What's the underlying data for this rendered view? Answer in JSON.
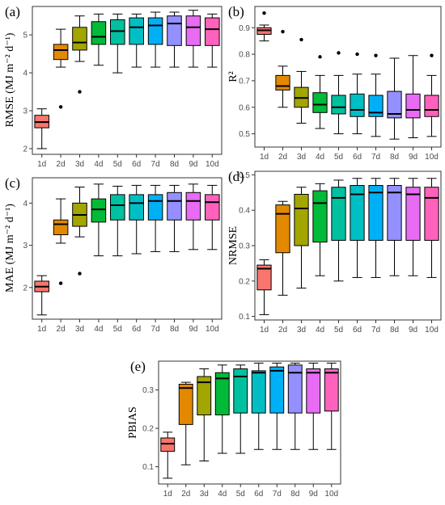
{
  "figure": {
    "categories": [
      "1d",
      "2d",
      "3d",
      "4d",
      "5d",
      "6d",
      "7d",
      "8d",
      "9d",
      "10d"
    ],
    "colors": [
      "#F8766D",
      "#E38900",
      "#A3A500",
      "#00BA38",
      "#00C19F",
      "#00BFC4",
      "#00B0F6",
      "#9590FF",
      "#E76BF3",
      "#FF62BC"
    ]
  },
  "chart_data": [
    {
      "panel": "(a)",
      "type": "box",
      "ylabel": "RMSE (MJ m⁻² d⁻¹)",
      "ylim": [
        1.85,
        5.75
      ],
      "yticks": [
        2,
        3,
        4,
        5
      ],
      "boxes": [
        {
          "cat": "1d",
          "whisker_low": 2.0,
          "q1": 2.55,
          "median": 2.7,
          "q3": 2.88,
          "whisker_high": 3.05,
          "outliers": []
        },
        {
          "cat": "2d",
          "whisker_low": 4.15,
          "q1": 4.35,
          "median": 4.6,
          "q3": 4.75,
          "whisker_high": 5.15,
          "outliers": [
            3.1
          ]
        },
        {
          "cat": "3d",
          "whisker_low": 4.3,
          "q1": 4.6,
          "median": 4.8,
          "q3": 5.2,
          "whisker_high": 5.5,
          "outliers": [
            3.5
          ]
        },
        {
          "cat": "4d",
          "whisker_low": 4.2,
          "q1": 4.75,
          "median": 4.95,
          "q3": 5.35,
          "whisker_high": 5.55,
          "outliers": []
        },
        {
          "cat": "5d",
          "whisker_low": 4.0,
          "q1": 4.75,
          "median": 5.1,
          "q3": 5.4,
          "whisker_high": 5.55,
          "outliers": []
        },
        {
          "cat": "6d",
          "whisker_low": 4.15,
          "q1": 4.75,
          "median": 5.2,
          "q3": 5.45,
          "whisker_high": 5.55,
          "outliers": []
        },
        {
          "cat": "7d",
          "whisker_low": 4.15,
          "q1": 4.75,
          "median": 5.25,
          "q3": 5.45,
          "whisker_high": 5.6,
          "outliers": []
        },
        {
          "cat": "8d",
          "whisker_low": 4.15,
          "q1": 4.72,
          "median": 5.3,
          "q3": 5.5,
          "whisker_high": 5.6,
          "outliers": []
        },
        {
          "cat": "9d",
          "whisker_low": 4.15,
          "q1": 4.72,
          "median": 5.2,
          "q3": 5.5,
          "whisker_high": 5.65,
          "outliers": []
        },
        {
          "cat": "10d",
          "whisker_low": 4.15,
          "q1": 4.72,
          "median": 5.15,
          "q3": 5.45,
          "whisker_high": 5.55,
          "outliers": []
        }
      ]
    },
    {
      "panel": "(b)",
      "type": "box",
      "ylabel": "R²",
      "ylim": [
        0.45,
        0.98
      ],
      "yticks": [
        0.5,
        0.6,
        0.7,
        0.8,
        0.9
      ],
      "boxes": [
        {
          "cat": "1d",
          "whisker_low": 0.85,
          "q1": 0.875,
          "median": 0.89,
          "q3": 0.9,
          "whisker_high": 0.91,
          "outliers": [
            0.955
          ]
        },
        {
          "cat": "2d",
          "whisker_low": 0.6,
          "q1": 0.665,
          "median": 0.68,
          "q3": 0.72,
          "whisker_high": 0.755,
          "outliers": [
            0.885
          ]
        },
        {
          "cat": "3d",
          "whisker_low": 0.54,
          "q1": 0.6,
          "median": 0.635,
          "q3": 0.675,
          "whisker_high": 0.735,
          "outliers": [
            0.855
          ]
        },
        {
          "cat": "4d",
          "whisker_low": 0.52,
          "q1": 0.58,
          "median": 0.61,
          "q3": 0.655,
          "whisker_high": 0.72,
          "outliers": [
            0.79
          ]
        },
        {
          "cat": "5d",
          "whisker_low": 0.5,
          "q1": 0.575,
          "median": 0.6,
          "q3": 0.645,
          "whisker_high": 0.72,
          "outliers": [
            0.805
          ]
        },
        {
          "cat": "6d",
          "whisker_low": 0.5,
          "q1": 0.565,
          "median": 0.59,
          "q3": 0.65,
          "whisker_high": 0.725,
          "outliers": [
            0.8
          ]
        },
        {
          "cat": "7d",
          "whisker_low": 0.49,
          "q1": 0.565,
          "median": 0.58,
          "q3": 0.645,
          "whisker_high": 0.725,
          "outliers": [
            0.795
          ]
        },
        {
          "cat": "8d",
          "whisker_low": 0.48,
          "q1": 0.56,
          "median": 0.575,
          "q3": 0.66,
          "whisker_high": 0.785,
          "outliers": []
        },
        {
          "cat": "9d",
          "whisker_low": 0.485,
          "q1": 0.56,
          "median": 0.59,
          "q3": 0.65,
          "whisker_high": 0.795,
          "outliers": []
        },
        {
          "cat": "10d",
          "whisker_low": 0.49,
          "q1": 0.565,
          "median": 0.59,
          "q3": 0.645,
          "whisker_high": 0.72,
          "outliers": [
            0.795
          ]
        }
      ]
    },
    {
      "panel": "(c)",
      "type": "box",
      "ylabel": "MAE (MJ m⁻² d⁻¹)",
      "ylim": [
        1.25,
        4.6
      ],
      "yticks": [
        2,
        3,
        4
      ],
      "boxes": [
        {
          "cat": "1d",
          "whisker_low": 1.35,
          "q1": 1.9,
          "median": 2.02,
          "q3": 2.15,
          "whisker_high": 2.28,
          "outliers": []
        },
        {
          "cat": "2d",
          "whisker_low": 3.05,
          "q1": 3.25,
          "median": 3.5,
          "q3": 3.6,
          "whisker_high": 4.1,
          "outliers": [
            2.1
          ]
        },
        {
          "cat": "3d",
          "whisker_low": 3.2,
          "q1": 3.45,
          "median": 3.72,
          "q3": 4.0,
          "whisker_high": 4.38,
          "outliers": [
            2.33
          ]
        },
        {
          "cat": "4d",
          "whisker_low": 2.75,
          "q1": 3.55,
          "median": 3.85,
          "q3": 4.1,
          "whisker_high": 4.45,
          "outliers": []
        },
        {
          "cat": "5d",
          "whisker_low": 2.75,
          "q1": 3.6,
          "median": 3.95,
          "q3": 4.2,
          "whisker_high": 4.4,
          "outliers": []
        },
        {
          "cat": "6d",
          "whisker_low": 2.8,
          "q1": 3.6,
          "median": 4.0,
          "q3": 4.2,
          "whisker_high": 4.42,
          "outliers": []
        },
        {
          "cat": "7d",
          "whisker_low": 2.85,
          "q1": 3.6,
          "median": 4.05,
          "q3": 4.2,
          "whisker_high": 4.42,
          "outliers": []
        },
        {
          "cat": "8d",
          "whisker_low": 2.85,
          "q1": 3.6,
          "median": 4.05,
          "q3": 4.25,
          "whisker_high": 4.42,
          "outliers": []
        },
        {
          "cat": "9d",
          "whisker_low": 2.9,
          "q1": 3.6,
          "median": 4.05,
          "q3": 4.25,
          "whisker_high": 4.45,
          "outliers": []
        },
        {
          "cat": "10d",
          "whisker_low": 2.9,
          "q1": 3.6,
          "median": 4.02,
          "q3": 4.2,
          "whisker_high": 4.42,
          "outliers": []
        }
      ]
    },
    {
      "panel": "(d)",
      "type": "box",
      "ylabel": "NRMSE",
      "ylim": [
        0.09,
        0.51
      ],
      "yticks": [
        0.1,
        0.2,
        0.3,
        0.4,
        0.5
      ],
      "boxes": [
        {
          "cat": "1d",
          "whisker_low": 0.105,
          "q1": 0.175,
          "median": 0.235,
          "q3": 0.245,
          "whisker_high": 0.26,
          "outliers": []
        },
        {
          "cat": "2d",
          "whisker_low": 0.16,
          "q1": 0.28,
          "median": 0.39,
          "q3": 0.415,
          "whisker_high": 0.425,
          "outliers": []
        },
        {
          "cat": "3d",
          "whisker_low": 0.18,
          "q1": 0.3,
          "median": 0.405,
          "q3": 0.445,
          "whisker_high": 0.465,
          "outliers": []
        },
        {
          "cat": "4d",
          "whisker_low": 0.215,
          "q1": 0.31,
          "median": 0.42,
          "q3": 0.455,
          "whisker_high": 0.475,
          "outliers": []
        },
        {
          "cat": "5d",
          "whisker_low": 0.2,
          "q1": 0.315,
          "median": 0.435,
          "q3": 0.465,
          "whisker_high": 0.485,
          "outliers": []
        },
        {
          "cat": "6d",
          "whisker_low": 0.21,
          "q1": 0.315,
          "median": 0.445,
          "q3": 0.47,
          "whisker_high": 0.49,
          "outliers": []
        },
        {
          "cat": "7d",
          "whisker_low": 0.21,
          "q1": 0.315,
          "median": 0.45,
          "q3": 0.47,
          "whisker_high": 0.49,
          "outliers": []
        },
        {
          "cat": "8d",
          "whisker_low": 0.215,
          "q1": 0.315,
          "median": 0.45,
          "q3": 0.47,
          "whisker_high": 0.49,
          "outliers": []
        },
        {
          "cat": "9d",
          "whisker_low": 0.215,
          "q1": 0.315,
          "median": 0.445,
          "q3": 0.465,
          "whisker_high": 0.49,
          "outliers": []
        },
        {
          "cat": "10d",
          "whisker_low": 0.21,
          "q1": 0.315,
          "median": 0.435,
          "q3": 0.465,
          "whisker_high": 0.49,
          "outliers": []
        }
      ]
    },
    {
      "panel": "(e)",
      "type": "box",
      "ylabel": "PBIAS",
      "ylim": [
        0.055,
        0.375
      ],
      "yticks": [
        0.1,
        0.2,
        0.3
      ],
      "boxes": [
        {
          "cat": "1d",
          "whisker_low": 0.07,
          "q1": 0.14,
          "median": 0.16,
          "q3": 0.175,
          "whisker_high": 0.19,
          "outliers": []
        },
        {
          "cat": "2d",
          "whisker_low": 0.105,
          "q1": 0.21,
          "median": 0.305,
          "q3": 0.315,
          "whisker_high": 0.32,
          "outliers": []
        },
        {
          "cat": "3d",
          "whisker_low": 0.115,
          "q1": 0.235,
          "median": 0.32,
          "q3": 0.335,
          "whisker_high": 0.355,
          "outliers": []
        },
        {
          "cat": "4d",
          "whisker_low": 0.135,
          "q1": 0.235,
          "median": 0.33,
          "q3": 0.345,
          "whisker_high": 0.365,
          "outliers": []
        },
        {
          "cat": "5d",
          "whisker_low": 0.135,
          "q1": 0.24,
          "median": 0.335,
          "q3": 0.355,
          "whisker_high": 0.365,
          "outliers": []
        },
        {
          "cat": "6d",
          "whisker_low": 0.145,
          "q1": 0.24,
          "median": 0.345,
          "q3": 0.35,
          "whisker_high": 0.37,
          "outliers": []
        },
        {
          "cat": "7d",
          "whisker_low": 0.145,
          "q1": 0.24,
          "median": 0.35,
          "q3": 0.36,
          "whisker_high": 0.37,
          "outliers": []
        },
        {
          "cat": "8d",
          "whisker_low": 0.145,
          "q1": 0.24,
          "median": 0.345,
          "q3": 0.365,
          "whisker_high": 0.37,
          "outliers": []
        },
        {
          "cat": "9d",
          "whisker_low": 0.145,
          "q1": 0.24,
          "median": 0.345,
          "q3": 0.355,
          "whisker_high": 0.37,
          "outliers": []
        },
        {
          "cat": "10d",
          "whisker_low": 0.145,
          "q1": 0.245,
          "median": 0.345,
          "q3": 0.355,
          "whisker_high": 0.37,
          "outliers": []
        }
      ]
    }
  ]
}
